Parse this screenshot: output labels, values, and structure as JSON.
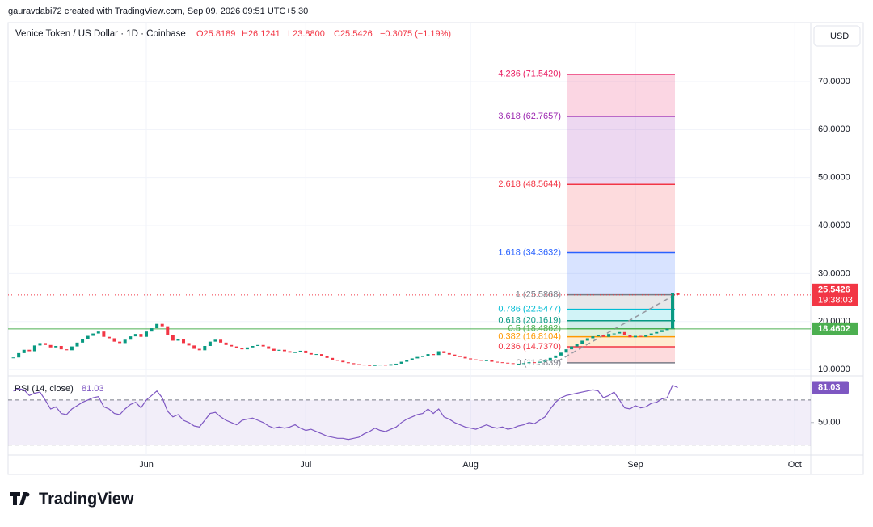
{
  "header": {
    "credit": "gauravdabi72 created with TradingView.com, Sep 09, 2026 09:51 UTC+5:30",
    "open": "O25.8189",
    "high": "H26.1241",
    "low": "L23.8800",
    "close": "C25.5426",
    "change": "−0.3075 (−1.19%)",
    "currency": "USD",
    "brand": "TradingView"
  },
  "chart_data": [
    {
      "type": "candlestick",
      "title": "Venice Token / US Dollar · 1D · Coinbase",
      "values": [
        12.5,
        13.4,
        14.1,
        13.8,
        15.0,
        15.5,
        15.1,
        14.6,
        14.9,
        14.2,
        14.0,
        14.8,
        15.6,
        16.3,
        17.0,
        17.5,
        17.9,
        16.8,
        16.5,
        15.8,
        15.5,
        16.2,
        16.9,
        17.4,
        16.8,
        17.9,
        18.6,
        19.5,
        19.0,
        17.2,
        16.0,
        16.4,
        15.5,
        15.0,
        14.3,
        14.0,
        14.9,
        15.8,
        16.2,
        15.6,
        15.1,
        14.8,
        14.5,
        14.2,
        14.6,
        14.9,
        15.1,
        14.8,
        14.3,
        13.9,
        14.1,
        13.8,
        13.5,
        13.6,
        13.9,
        13.4,
        13.1,
        13.2,
        12.8,
        12.4,
        12.0,
        11.8,
        11.5,
        11.3,
        11.1,
        11.0,
        10.9,
        10.8,
        10.9,
        11.0,
        10.8,
        11.1,
        11.2,
        11.6,
        12.0,
        12.3,
        12.6,
        12.8,
        13.2,
        13.0,
        13.8,
        13.4,
        13.1,
        12.8,
        12.6,
        12.3,
        12.1,
        12.0,
        11.8,
        11.9,
        11.6,
        11.5,
        11.4,
        11.3,
        11.2,
        11.2,
        11.3,
        11.5,
        11.4,
        11.6,
        11.8,
        12.4,
        12.9,
        13.5,
        14.2,
        14.8,
        15.3,
        16.0,
        16.5,
        16.9,
        17.2,
        16.8,
        17.4,
        17.5,
        17.8,
        17.1,
        16.7,
        17.0,
        16.8,
        17.2,
        17.5,
        17.8,
        18.2,
        18.5,
        25.8501,
        25.5426
      ],
      "up_color": "#089981",
      "down_color": "#f23645",
      "xlim": [
        -1,
        150
      ],
      "xticks": [
        {
          "value": 25,
          "label": "Jun"
        },
        {
          "value": 55,
          "label": "Jul"
        },
        {
          "value": 86,
          "label": "Aug"
        },
        {
          "value": 117,
          "label": "Sep"
        },
        {
          "value": 147,
          "label": "Oct"
        }
      ],
      "ylim": [
        9,
        82.3
      ],
      "yticks": [
        {
          "value": 10,
          "label": "10.0000"
        },
        {
          "value": 20,
          "label": "20.0000"
        },
        {
          "value": 30,
          "label": "30.0000"
        },
        {
          "value": 40,
          "label": "40.0000"
        },
        {
          "value": 50,
          "label": "50.0000"
        },
        {
          "value": 60,
          "label": "60.0000"
        },
        {
          "value": 70,
          "label": "70.0000"
        }
      ],
      "fib_levels": [
        {
          "label": "0 (11.3839)",
          "value": 11.3839,
          "color": "#787b86"
        },
        {
          "label": "0.236 (14.7370)",
          "value": 14.737,
          "color": "#f23645"
        },
        {
          "label": "0.382 (16.8104)",
          "value": 16.8104,
          "color": "#ff9800"
        },
        {
          "label": "0.5 (18.4862)",
          "value": 18.4862,
          "color": "#4caf50"
        },
        {
          "label": "0.618 (20.1619)",
          "value": 20.1619,
          "color": "#089981"
        },
        {
          "label": "0.786 (22.5477)",
          "value": 22.5477,
          "color": "#00bcd4"
        },
        {
          "label": "1 (25.5868)",
          "value": 25.5868,
          "color": "#787b86"
        },
        {
          "label": "1.618 (34.3632)",
          "value": 34.3632,
          "color": "#2962ff"
        },
        {
          "label": "2.618 (48.5644)",
          "value": 48.5644,
          "color": "#f23645"
        },
        {
          "label": "3.618 (62.7657)",
          "value": 62.7657,
          "color": "#9c27b0"
        },
        {
          "label": "4.236 (71.5420)",
          "value": 71.542,
          "color": "#e91e63"
        }
      ],
      "hline": {
        "value": 18.4602,
        "color": "#4caf50"
      },
      "countdown": "19:38:03"
    },
    {
      "type": "line",
      "title": "RSI (14, close)",
      "color": "#7e57c2",
      "values": [
        78,
        80,
        79,
        74,
        76,
        77,
        70,
        62,
        64,
        58,
        57,
        62,
        65,
        68,
        70,
        72,
        73,
        64,
        62,
        58,
        57,
        62,
        66,
        68,
        63,
        70,
        74,
        78,
        72,
        60,
        55,
        57,
        52,
        50,
        47,
        46,
        52,
        58,
        59,
        55,
        52,
        50,
        48,
        52,
        53,
        54,
        52,
        50,
        47,
        45,
        46,
        45,
        46,
        48,
        45,
        43,
        44,
        42,
        40,
        38,
        37,
        36,
        36,
        35,
        36,
        37,
        40,
        42,
        45,
        43,
        42,
        44,
        46,
        50,
        53,
        55,
        57,
        58,
        62,
        58,
        62,
        55,
        53,
        50,
        48,
        46,
        45,
        44,
        46,
        48,
        46,
        45,
        46,
        44,
        45,
        47,
        48,
        50,
        49,
        52,
        55,
        62,
        68,
        72,
        74,
        75,
        76,
        77,
        78,
        79,
        78,
        72,
        74,
        77,
        70,
        63,
        62,
        65,
        63,
        64,
        67,
        68,
        71,
        72,
        83,
        81.03
      ],
      "ylim": [
        23.3,
        90
      ],
      "yticks": [
        {
          "value": 50,
          "label": "50.00"
        }
      ],
      "bands": [
        30,
        70
      ]
    }
  ]
}
